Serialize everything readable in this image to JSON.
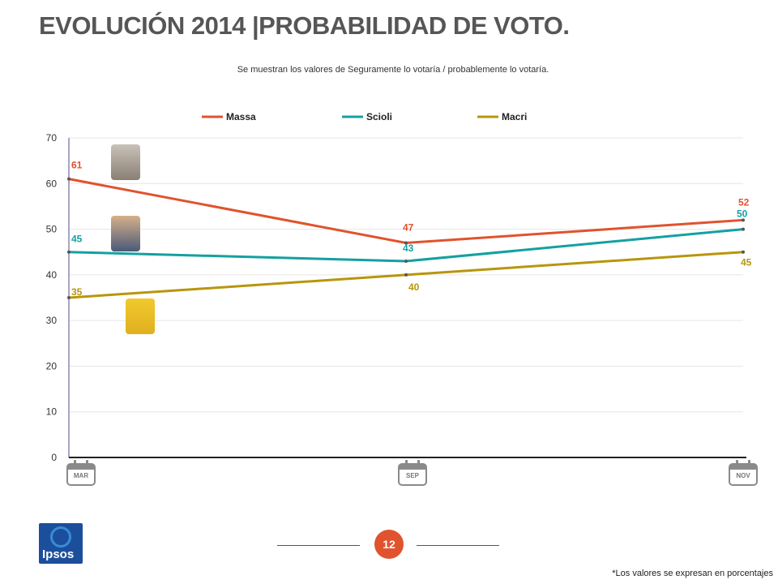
{
  "header": {
    "title": "EVOLUCIÓN 2014 |PROBABILIDAD DE VOTO.",
    "subtitle": "Se muestran los valores de Seguramente lo votaría / probablemente lo votaría."
  },
  "chart_data": {
    "type": "line",
    "categories": [
      "MAR",
      "SEP",
      "NOV"
    ],
    "series": [
      {
        "name": "Massa",
        "color": "#e0532e",
        "values": [
          61,
          47,
          52
        ]
      },
      {
        "name": "Scioli",
        "color": "#14a0a2",
        "values": [
          45,
          43,
          50
        ]
      },
      {
        "name": "Macri",
        "color": "#b8960c",
        "values": [
          35,
          40,
          45
        ]
      }
    ],
    "y_ticks": [
      0,
      10,
      20,
      30,
      40,
      50,
      60,
      70
    ],
    "ylim": [
      0,
      70
    ],
    "grid": true,
    "legend_position": "top"
  },
  "footer": {
    "page_number": "12",
    "footnote": "*Los valores se expresan en porcentajes",
    "logo_text": "Ipsos"
  }
}
